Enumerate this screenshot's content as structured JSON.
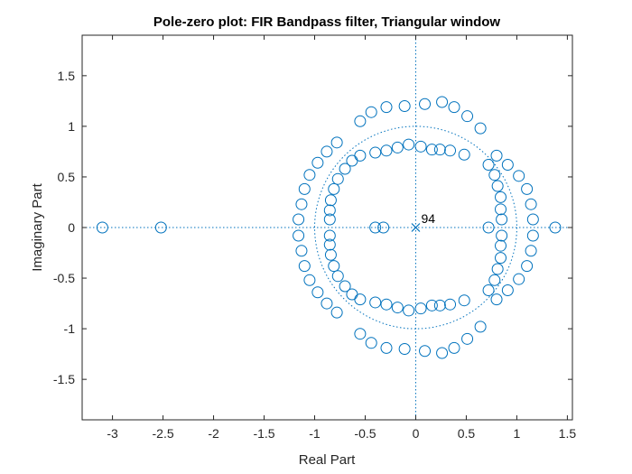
{
  "chart_data": {
    "type": "scatter",
    "title": "Pole-zero plot: FIR Bandpass filter, Triangular window",
    "xlabel": "Real Part",
    "ylabel": "Imaginary Part",
    "xlim": [
      -3.3,
      1.55
    ],
    "ylim": [
      -1.9,
      1.9
    ],
    "xticks": [
      -3,
      -2.5,
      -2,
      -1.5,
      -1,
      -0.5,
      0,
      0.5,
      1,
      1.5
    ],
    "xtick_labels": [
      "-3",
      "-2.5",
      "-2",
      "-1.5",
      "-1",
      "-0.5",
      "0",
      "0.5",
      "1",
      "1.5"
    ],
    "yticks": [
      -1.5,
      -1,
      -0.5,
      0,
      0.5,
      1,
      1.5
    ],
    "ytick_labels": [
      "-1.5",
      "-1",
      "-0.5",
      "0",
      "0.5",
      "1",
      "1.5"
    ],
    "grid": false,
    "unit_circle": true,
    "color": "#0072bd",
    "pole_annotation": "94",
    "poles": [
      [
        0,
        0
      ]
    ],
    "zeros_upper": [
      [
        -3.1,
        0
      ],
      [
        -2.52,
        0
      ],
      [
        -0.4,
        0
      ],
      [
        -0.32,
        0
      ],
      [
        0.72,
        0
      ],
      [
        1.38,
        0
      ],
      [
        -1.16,
        0.08
      ],
      [
        -1.13,
        0.23
      ],
      [
        -1.1,
        0.38
      ],
      [
        -1.05,
        0.52
      ],
      [
        -0.97,
        0.64
      ],
      [
        -0.88,
        0.75
      ],
      [
        -0.78,
        0.84
      ],
      [
        -0.55,
        1.05
      ],
      [
        -0.44,
        1.14
      ],
      [
        -0.29,
        1.19
      ],
      [
        -0.11,
        1.2
      ],
      [
        0.09,
        1.22
      ],
      [
        0.26,
        1.24
      ],
      [
        0.38,
        1.19
      ],
      [
        0.51,
        1.1
      ],
      [
        0.64,
        0.98
      ],
      [
        -0.85,
        0.08
      ],
      [
        -0.85,
        0.17
      ],
      [
        -0.84,
        0.27
      ],
      [
        -0.81,
        0.38
      ],
      [
        -0.77,
        0.48
      ],
      [
        -0.7,
        0.58
      ],
      [
        -0.63,
        0.66
      ],
      [
        -0.55,
        0.71
      ],
      [
        -0.4,
        0.74
      ],
      [
        -0.29,
        0.76
      ],
      [
        -0.18,
        0.79
      ],
      [
        -0.07,
        0.82
      ],
      [
        0.05,
        0.8
      ],
      [
        0.16,
        0.77
      ],
      [
        0.24,
        0.77
      ],
      [
        0.34,
        0.76
      ],
      [
        0.48,
        0.72
      ],
      [
        0.85,
        0.08
      ],
      [
        0.84,
        0.18
      ],
      [
        0.84,
        0.3
      ],
      [
        0.81,
        0.41
      ],
      [
        0.78,
        0.52
      ],
      [
        0.72,
        0.62
      ],
      [
        0.8,
        0.71
      ],
      [
        0.91,
        0.62
      ],
      [
        1.02,
        0.51
      ],
      [
        1.1,
        0.38
      ],
      [
        1.14,
        0.23
      ],
      [
        1.16,
        0.08
      ]
    ]
  }
}
